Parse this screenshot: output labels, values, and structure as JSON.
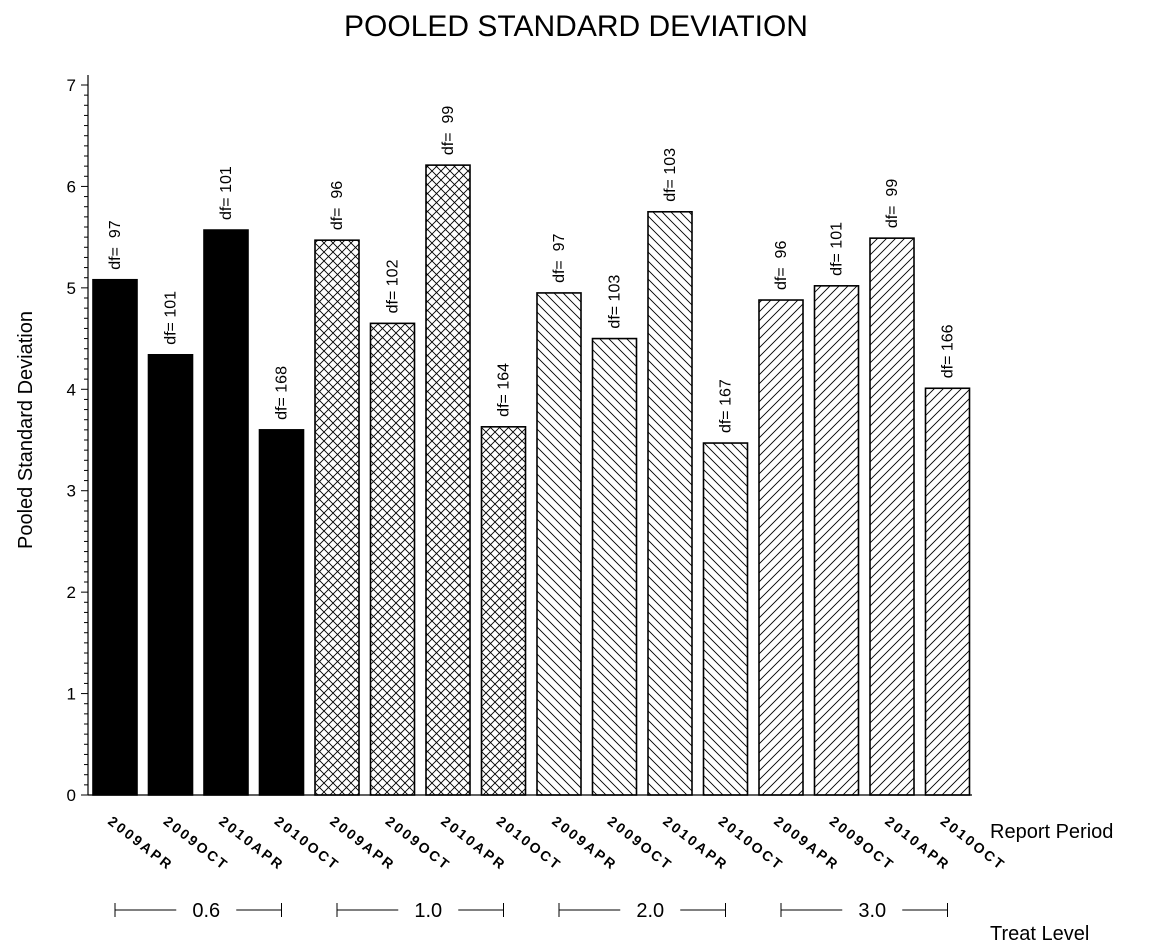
{
  "chart_data": {
    "type": "bar",
    "title": "POOLED STANDARD DEVIATION",
    "ylabel": "Pooled Standard Deviation",
    "xlabel": "Report Period",
    "group_axis_label": "Treat Level",
    "ylim": [
      0,
      7
    ],
    "yticks": [
      "0",
      "1",
      "2",
      "3",
      "4",
      "5",
      "6",
      "7"
    ],
    "grid": false,
    "groups": [
      {
        "label": "0.6",
        "pattern": "solid",
        "bars": [
          {
            "period": "2009APR",
            "value": 5.08,
            "df": "df=  97"
          },
          {
            "period": "2009OCT",
            "value": 4.34,
            "df": "df= 101"
          },
          {
            "period": "2010APR",
            "value": 5.57,
            "df": "df= 101"
          },
          {
            "period": "2010OCT",
            "value": 3.6,
            "df": "df= 168"
          }
        ]
      },
      {
        "label": "1.0",
        "pattern": "crosshatch",
        "bars": [
          {
            "period": "2009APR",
            "value": 5.47,
            "df": "df=  96"
          },
          {
            "period": "2009OCT",
            "value": 4.65,
            "df": "df= 102"
          },
          {
            "period": "2010APR",
            "value": 6.21,
            "df": "df=  99"
          },
          {
            "period": "2010OCT",
            "value": 3.63,
            "df": "df= 164"
          }
        ]
      },
      {
        "label": "2.0",
        "pattern": "backslash",
        "bars": [
          {
            "period": "2009APR",
            "value": 4.95,
            "df": "df=  97"
          },
          {
            "period": "2009OCT",
            "value": 4.5,
            "df": "df= 103"
          },
          {
            "period": "2010APR",
            "value": 5.75,
            "df": "df= 103"
          },
          {
            "period": "2010OCT",
            "value": 3.47,
            "df": "df= 167"
          }
        ]
      },
      {
        "label": "3.0",
        "pattern": "slash",
        "bars": [
          {
            "period": "2009APR",
            "value": 4.88,
            "df": "df=  96"
          },
          {
            "period": "2009OCT",
            "value": 5.02,
            "df": "df= 101"
          },
          {
            "period": "2010APR",
            "value": 5.49,
            "df": "df=  99"
          },
          {
            "period": "2010OCT",
            "value": 4.01,
            "df": "df= 166"
          }
        ]
      }
    ]
  }
}
